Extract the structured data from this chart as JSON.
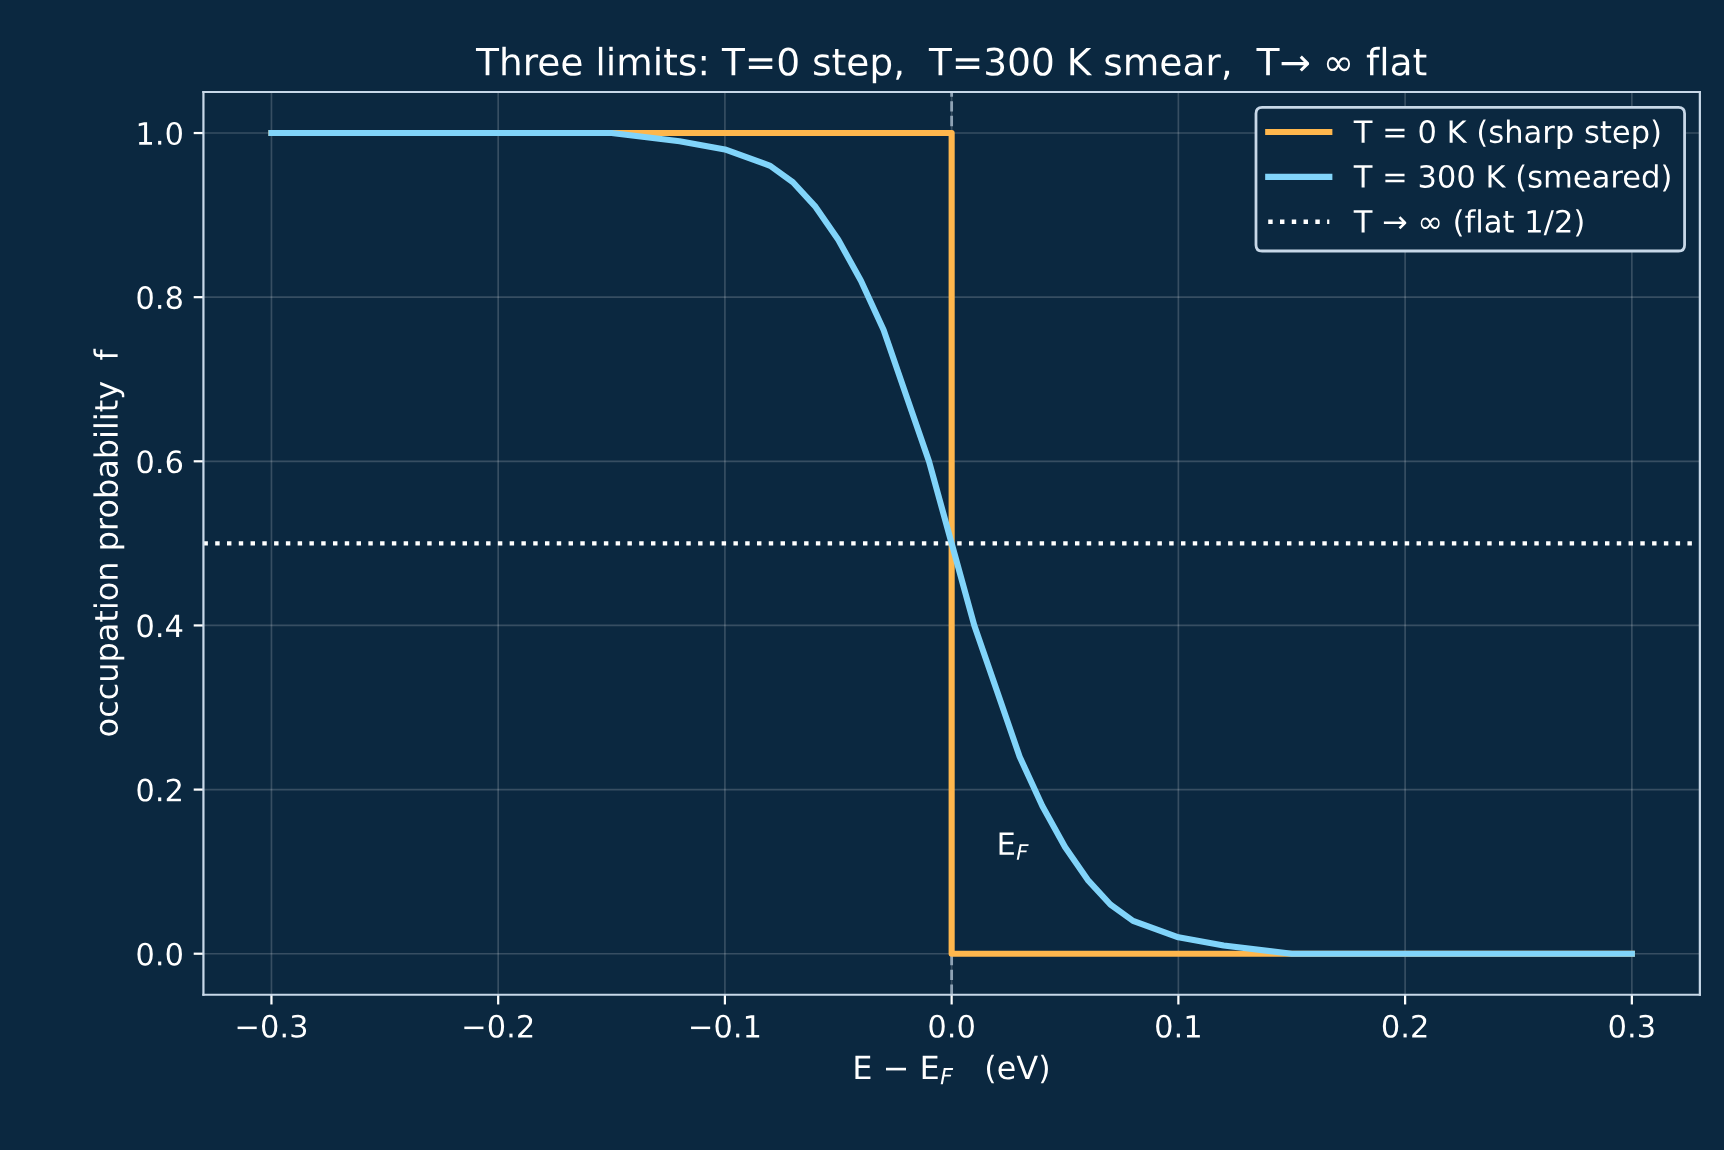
{
  "chart_data": {
    "type": "line",
    "title": "Three limits: T=0 step,  T=300 K smear,  T→ ∞ flat",
    "xlabel": "E − E$_{F}$   (eV)",
    "ylabel": "occupation probability  f",
    "series": [
      {
        "name": "T = 0 K (sharp step)",
        "color": "#ffb74d",
        "x": [
          -0.3,
          0,
          0,
          0.3
        ],
        "values": [
          1,
          1,
          0,
          0
        ]
      },
      {
        "name": "T = 300 K (smeared)",
        "color": "#81d4fa",
        "x": [
          -0.3,
          -0.2,
          -0.15,
          -0.12,
          -0.1,
          -0.08,
          -0.07,
          -0.06,
          -0.05,
          -0.04,
          -0.03,
          -0.02,
          -0.01,
          0,
          0.01,
          0.02,
          0.03,
          0.04,
          0.05,
          0.06,
          0.07,
          0.08,
          0.1,
          0.12,
          0.15,
          0.2,
          0.3
        ],
        "values": [
          1.0,
          1.0,
          1.0,
          0.99,
          0.98,
          0.96,
          0.94,
          0.91,
          0.87,
          0.82,
          0.76,
          0.68,
          0.6,
          0.5,
          0.4,
          0.32,
          0.24,
          0.18,
          0.13,
          0.09,
          0.06,
          0.04,
          0.02,
          0.01,
          0.0,
          0.0,
          0.0
        ]
      }
    ],
    "ref_lines": [
      {
        "axis": "y",
        "value": 0.5,
        "label": "T → ∞ (flat 1/2)",
        "color": "#ffffff",
        "line_style": "dotted"
      },
      {
        "axis": "x",
        "value": 0,
        "color": "#8fa3b5",
        "line_style": "dashed"
      }
    ],
    "annotations": [
      "E$_{F}$"
    ],
    "xlim": [
      -0.33,
      0.33
    ],
    "ylim": [
      -0.05,
      1.05
    ],
    "xticks": [
      {
        "value": -0.3,
        "label": "−0.3"
      },
      {
        "value": -0.2,
        "label": "−0.2"
      },
      {
        "value": -0.1,
        "label": "−0.1"
      },
      {
        "value": 0,
        "label": "0.0"
      },
      0.1,
      0.2,
      0.3
    ],
    "yticks": [
      {
        "value": 0,
        "label": "0.0"
      },
      0.2,
      0.4,
      0.6,
      0.8,
      {
        "value": 1,
        "label": "1.0"
      }
    ],
    "grid": true,
    "legend": "top right",
    "line_style": "solid",
    "marker": "none"
  }
}
